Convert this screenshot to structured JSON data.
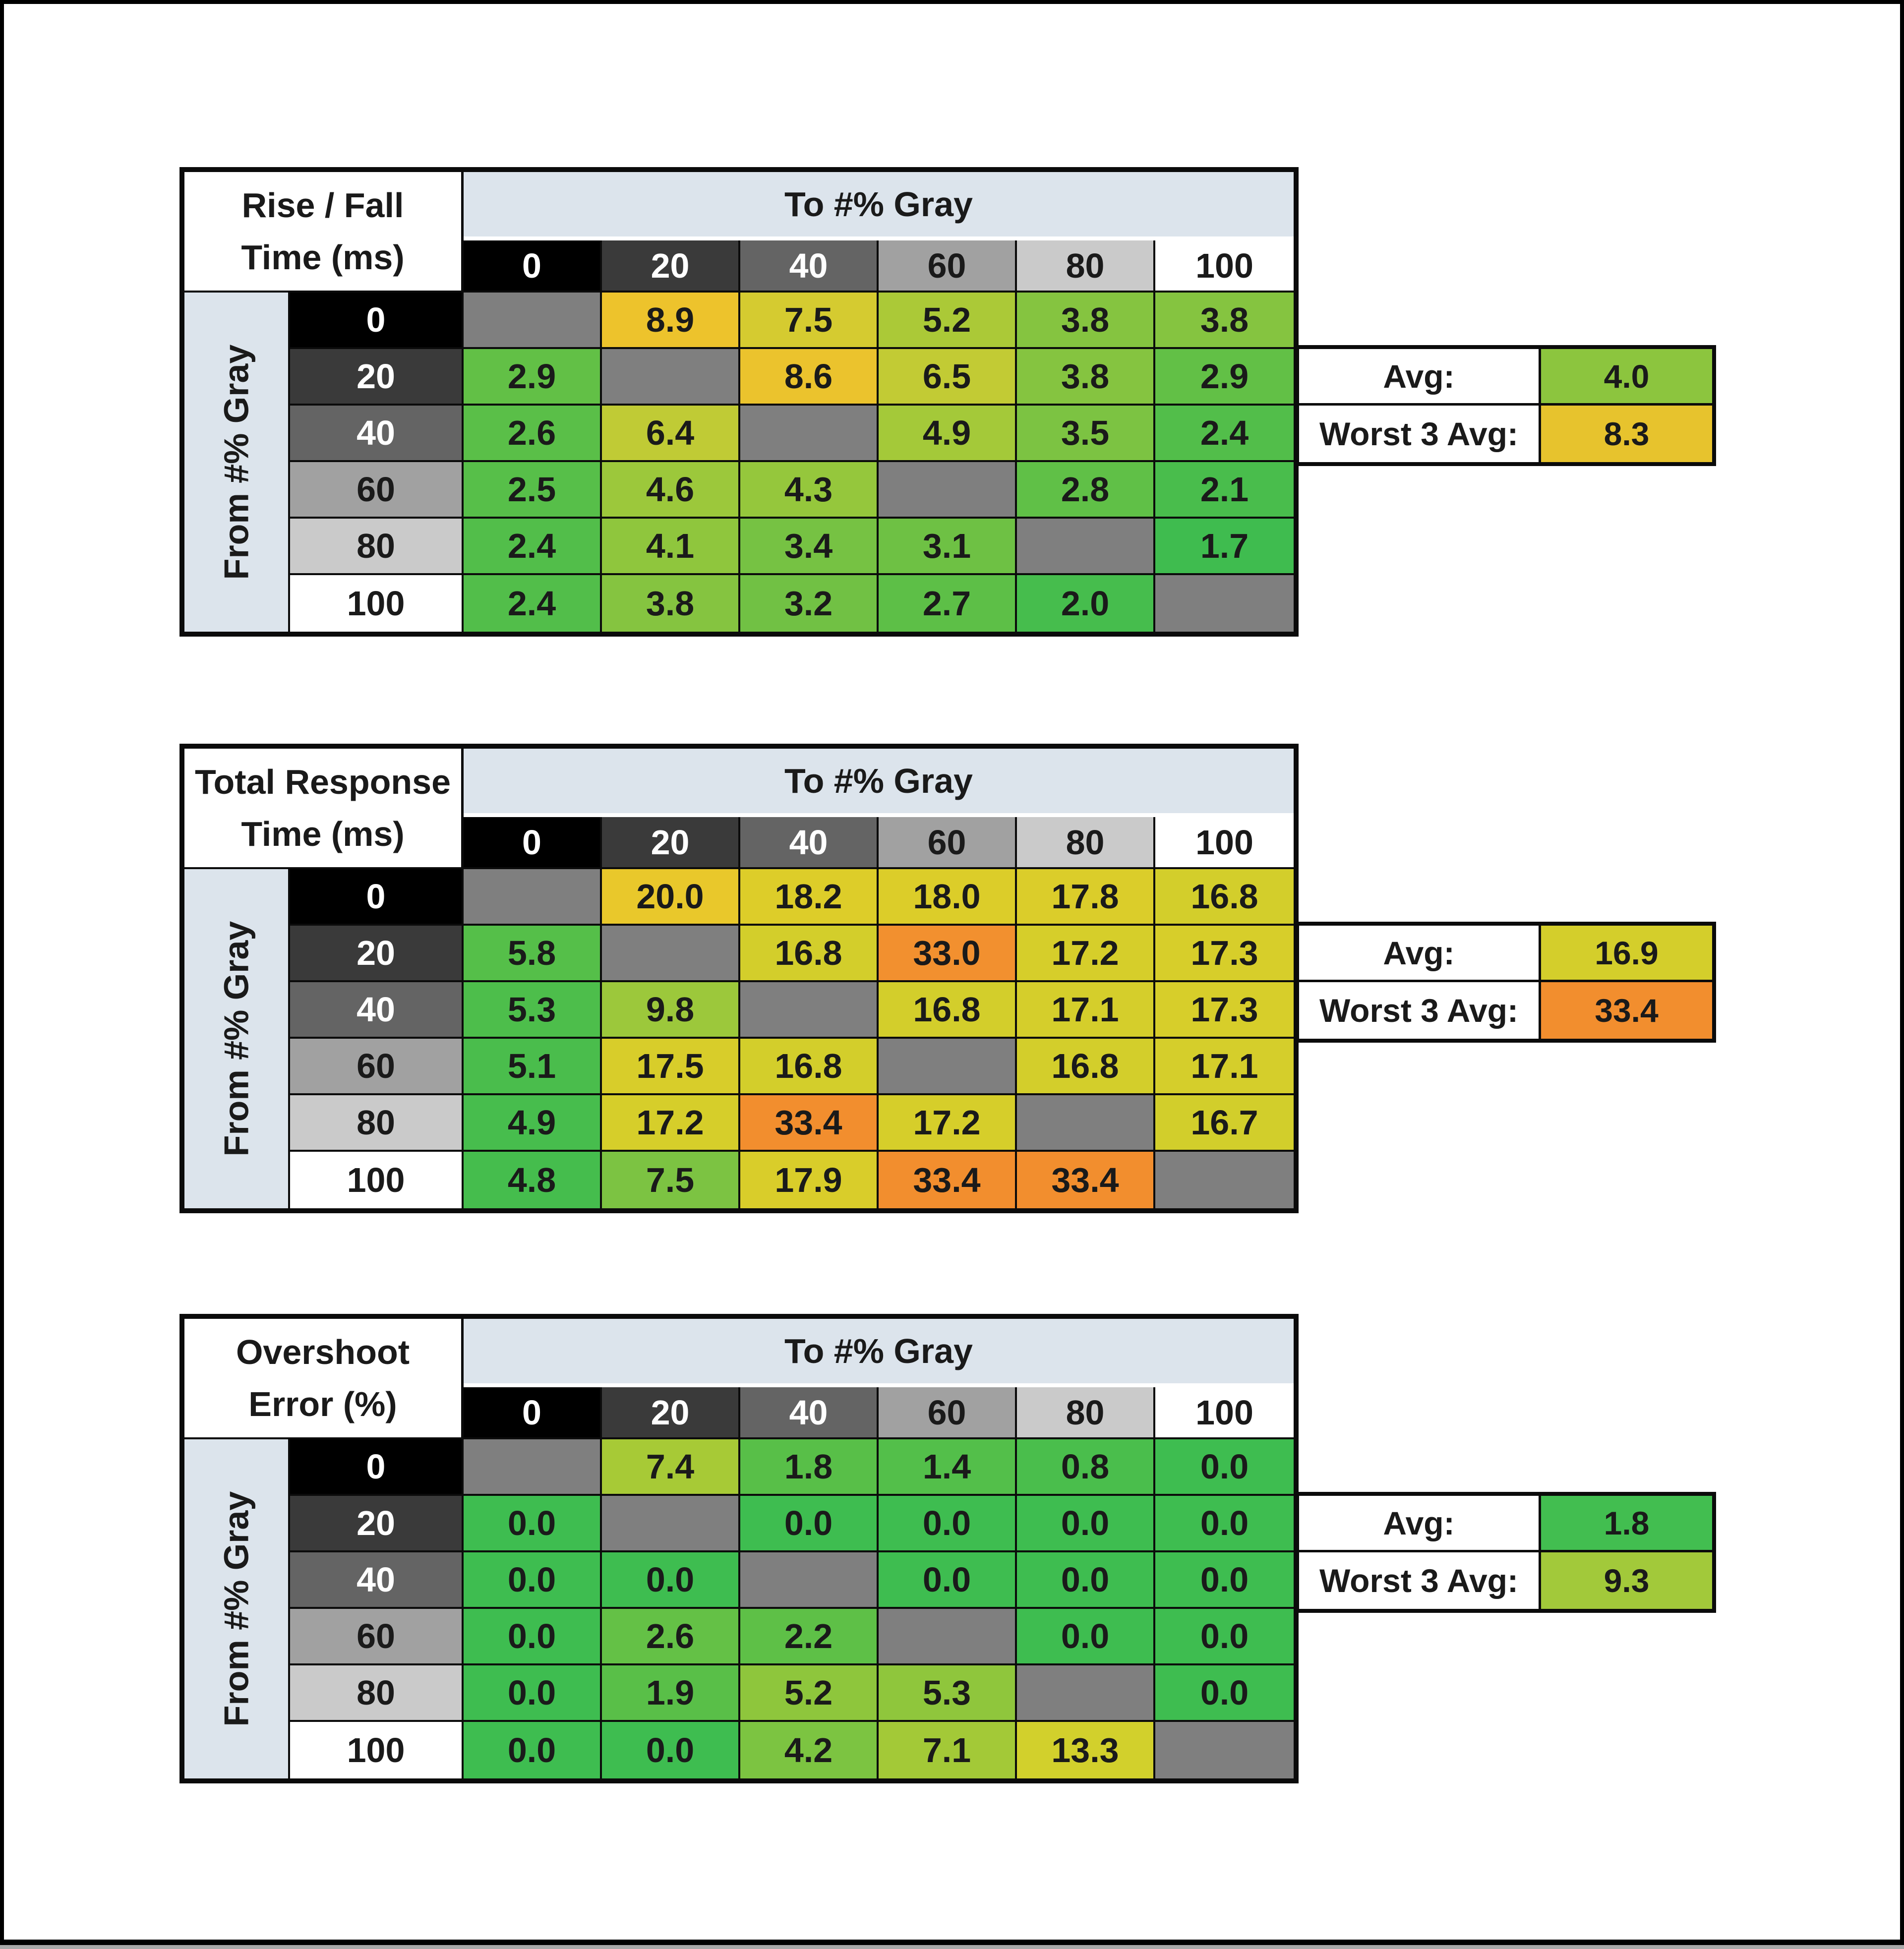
{
  "page": {
    "background": "#ffffff",
    "frame_color": "#000000",
    "grid_color": "#0b0b0b"
  },
  "shared": {
    "col_axis_title": "To #% Gray",
    "row_axis_title": "From #% Gray",
    "col_axis_bg": "#dce4ec",
    "diagonal_color": "#7f7f7f",
    "avg_label": "Avg:",
    "worst_label": "Worst 3 Avg:",
    "gray_headers": [
      {
        "label": "0",
        "bg": "#000000",
        "text": "#ffffff"
      },
      {
        "label": "20",
        "bg": "#3a3a3a",
        "text": "#ffffff"
      },
      {
        "label": "40",
        "bg": "#646464",
        "text": "#ffffff"
      },
      {
        "label": "60",
        "bg": "#a1a1a1",
        "text": "#1a1a1a"
      },
      {
        "label": "80",
        "bg": "#cacaca",
        "text": "#1a1a1a"
      },
      {
        "label": "100",
        "bg": "#ffffff",
        "text": "#1a1a1a"
      }
    ]
  },
  "tables": [
    {
      "key": "rise-fall-time",
      "title_line1": "Rise / Fall",
      "title_line2": "Time (ms)",
      "avg": {
        "value": "4.0",
        "color": "#8cc53e"
      },
      "worst": {
        "value": "8.3",
        "color": "#e7c32d"
      },
      "colors": [
        [
          null,
          "#edc32c",
          "#d5cb30",
          "#abc937",
          "#85c440",
          "#85c440"
        ],
        [
          "#62c046",
          null,
          "#ebc32d",
          "#c2cb34",
          "#85c440",
          "#62c046"
        ],
        [
          "#5abf48",
          "#c0cb35",
          null,
          "#a4c939",
          "#7cc342",
          "#52be4a"
        ],
        [
          "#57bf49",
          "#9cc83b",
          "#95c73c",
          null,
          "#60c047",
          "#49bd4c"
        ],
        [
          "#52be4a",
          "#8fc63d",
          "#76c243",
          "#6ec144",
          null,
          "#3fbc4f"
        ],
        [
          "#52be4a",
          "#85c440",
          "#71c144",
          "#5dbf47",
          "#46bd4d",
          null
        ]
      ]
    },
    {
      "key": "total-response-time",
      "title_line1": "Total Response",
      "title_line2": "Time (ms)",
      "avg": {
        "value": "16.9",
        "color": "#d4ce2b"
      },
      "worst": {
        "value": "33.4",
        "color": "#f28e2e"
      },
      "colors": [
        [
          null,
          "#e9c82b",
          "#ddcd29",
          "#dccd29",
          "#dbcd2a",
          "#d3ce2b"
        ],
        [
          "#55bf49",
          null,
          "#d3ce2b",
          "#f2902f",
          "#d6ce2a",
          "#d7ce2a"
        ],
        [
          "#4dbe4b",
          "#9cc83b",
          null,
          "#d3ce2b",
          "#d5ce2b",
          "#d7ce2a"
        ],
        [
          "#4abd4c",
          "#d8cd2a",
          "#d3ce2b",
          null,
          "#d3ce2b",
          "#d5ce2b"
        ],
        [
          "#47bd4d",
          "#d6ce2a",
          "#f28e2e",
          "#d6ce2a",
          null,
          "#d2ce2b"
        ],
        [
          "#45bd4d",
          "#7cc342",
          "#d9cd2a",
          "#f28e2e",
          "#f28e2e",
          null
        ]
      ]
    },
    {
      "key": "overshoot-error",
      "title_line1": "Overshoot",
      "title_line2": "Error (%)",
      "avg": {
        "value": "1.8",
        "color": "#42be50"
      },
      "worst": {
        "value": "9.3",
        "color": "#a2c93a"
      },
      "colors": [
        [
          null,
          "#a7ca36",
          "#58bf48",
          "#53bf4a",
          "#4abe4c",
          "#3ebd50"
        ],
        [
          "#3ebd50",
          null,
          "#3ebd50",
          "#3ebd50",
          "#3ebd50",
          "#3ebd50"
        ],
        [
          "#3ebd50",
          "#3ebd50",
          null,
          "#3ebd50",
          "#3ebd50",
          "#3ebd50"
        ],
        [
          "#3ebd50",
          "#64c146",
          "#5ec047",
          null,
          "#3ebd50",
          "#3ebd50"
        ],
        [
          "#3ebd50",
          "#59bf48",
          "#8ec63c",
          "#8fc63c",
          null,
          "#3ebd50"
        ],
        [
          "#3ebd50",
          "#3ebd50",
          "#7cc441",
          "#a3c937",
          "#d2d02c",
          null
        ]
      ]
    }
  ],
  "chart_data": [
    {
      "type": "heatmap",
      "title": "Rise / Fall Time (ms)",
      "xlabel": "To #% Gray",
      "ylabel": "From #% Gray",
      "columns": [
        0,
        20,
        40,
        60,
        80,
        100
      ],
      "rows": [
        0,
        20,
        40,
        60,
        80,
        100
      ],
      "values": [
        [
          null,
          8.9,
          7.5,
          5.2,
          3.8,
          3.8
        ],
        [
          2.9,
          null,
          8.6,
          6.5,
          3.8,
          2.9
        ],
        [
          2.6,
          6.4,
          null,
          4.9,
          3.5,
          2.4
        ],
        [
          2.5,
          4.6,
          4.3,
          null,
          2.8,
          2.1
        ],
        [
          2.4,
          4.1,
          3.4,
          3.1,
          null,
          1.7
        ],
        [
          2.4,
          3.8,
          3.2,
          2.7,
          2.0,
          null
        ]
      ],
      "avg": 4.0,
      "worst_3_avg": 8.3
    },
    {
      "type": "heatmap",
      "title": "Total Response Time (ms)",
      "xlabel": "To #% Gray",
      "ylabel": "From #% Gray",
      "columns": [
        0,
        20,
        40,
        60,
        80,
        100
      ],
      "rows": [
        0,
        20,
        40,
        60,
        80,
        100
      ],
      "values": [
        [
          null,
          20.0,
          18.2,
          18.0,
          17.8,
          16.8
        ],
        [
          5.8,
          null,
          16.8,
          33.0,
          17.2,
          17.3
        ],
        [
          5.3,
          9.8,
          null,
          16.8,
          17.1,
          17.3
        ],
        [
          5.1,
          17.5,
          16.8,
          null,
          16.8,
          17.1
        ],
        [
          4.9,
          17.2,
          33.4,
          17.2,
          null,
          16.7
        ],
        [
          4.8,
          7.5,
          17.9,
          33.4,
          33.4,
          null
        ]
      ],
      "avg": 16.9,
      "worst_3_avg": 33.4
    },
    {
      "type": "heatmap",
      "title": "Overshoot Error (%)",
      "xlabel": "To #% Gray",
      "ylabel": "From #% Gray",
      "columns": [
        0,
        20,
        40,
        60,
        80,
        100
      ],
      "rows": [
        0,
        20,
        40,
        60,
        80,
        100
      ],
      "values": [
        [
          null,
          7.4,
          1.8,
          1.4,
          0.8,
          0.0
        ],
        [
          0.0,
          null,
          0.0,
          0.0,
          0.0,
          0.0
        ],
        [
          0.0,
          0.0,
          null,
          0.0,
          0.0,
          0.0
        ],
        [
          0.0,
          2.6,
          2.2,
          null,
          0.0,
          0.0
        ],
        [
          0.0,
          1.9,
          5.2,
          5.3,
          null,
          0.0
        ],
        [
          0.0,
          0.0,
          4.2,
          7.1,
          13.3,
          null
        ]
      ],
      "avg": 1.8,
      "worst_3_avg": 9.3
    }
  ]
}
